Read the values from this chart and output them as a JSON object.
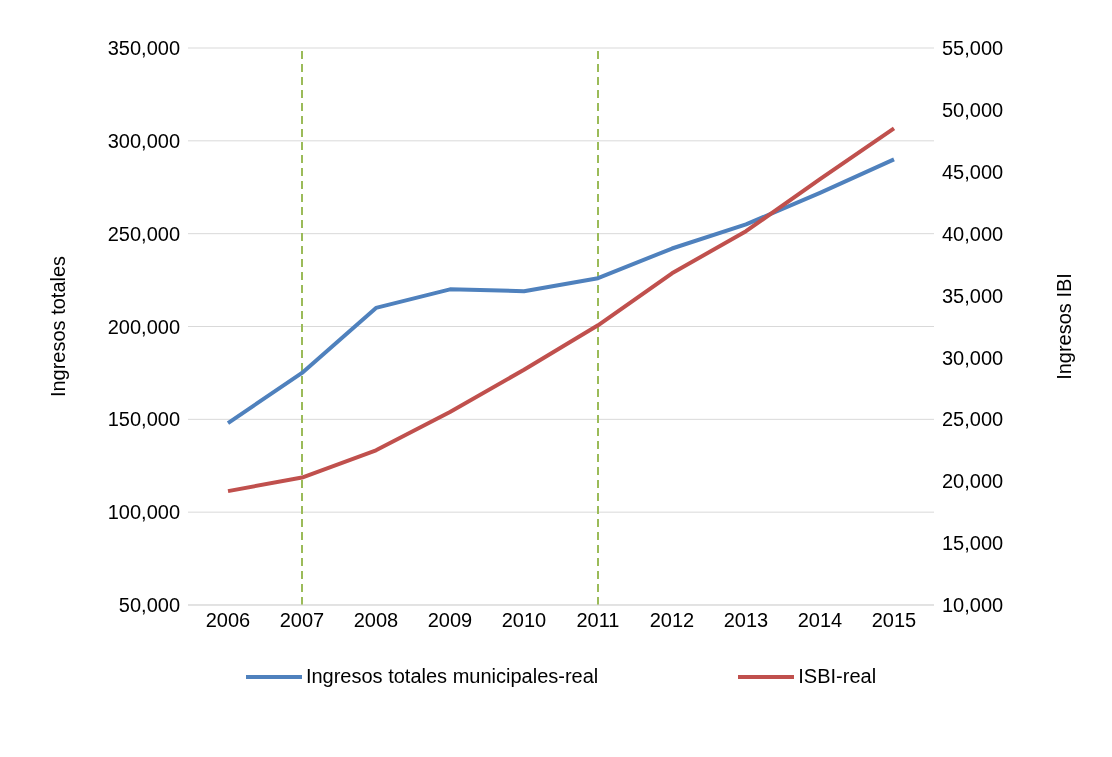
{
  "chart_data": {
    "type": "line",
    "ylabel": "Ingresos totales",
    "y2label": "Ingresos IBI",
    "categories": [
      "2006",
      "2007",
      "2008",
      "2009",
      "2010",
      "2011",
      "2012",
      "2013",
      "2014",
      "2015"
    ],
    "series": [
      {
        "name": "Ingresos totales municipales-real",
        "color": "#4f81bd",
        "values": [
          148000,
          175000,
          210000,
          220000,
          219000,
          226000,
          242000,
          255000,
          272000,
          290000
        ]
      },
      {
        "name": "ISBI-real",
        "color": "#c0504d",
        "axis": "y2",
        "values": [
          19200,
          20300,
          22500,
          25600,
          29000,
          32600,
          36800,
          40200,
          44400,
          48500
        ]
      }
    ],
    "ylim": [
      50000,
      350000
    ],
    "yticks": [
      {
        "value": 50000,
        "label": "50,000"
      },
      {
        "value": 100000,
        "label": "100,000"
      },
      {
        "value": 150000,
        "label": "150,000"
      },
      {
        "value": 200000,
        "label": "200,000"
      },
      {
        "value": 250000,
        "label": "250,000"
      },
      {
        "value": 300000,
        "label": "300,000"
      },
      {
        "value": 350000,
        "label": "350,000"
      }
    ],
    "y2lim": [
      10000,
      55000
    ],
    "y2ticks": [
      {
        "value": 10000,
        "label": "10,000"
      },
      {
        "value": 15000,
        "label": "15,000"
      },
      {
        "value": 20000,
        "label": "20,000"
      },
      {
        "value": 25000,
        "label": "25,000"
      },
      {
        "value": 30000,
        "label": "30,000"
      },
      {
        "value": 35000,
        "label": "35,000"
      },
      {
        "value": 40000,
        "label": "40,000"
      },
      {
        "value": 45000,
        "label": "45,000"
      },
      {
        "value": 50000,
        "label": "50,000"
      },
      {
        "value": 55000,
        "label": "55,000"
      }
    ],
    "ref_lines": [
      {
        "axis": "x",
        "value": "2007",
        "color": "#9bbb59",
        "line_style": "dashed"
      },
      {
        "axis": "x",
        "value": "2011",
        "color": "#9bbb59",
        "line_style": "dashed"
      }
    ],
    "grid": "y",
    "legend": "bottom",
    "marker": "none",
    "line_style": "solid"
  }
}
